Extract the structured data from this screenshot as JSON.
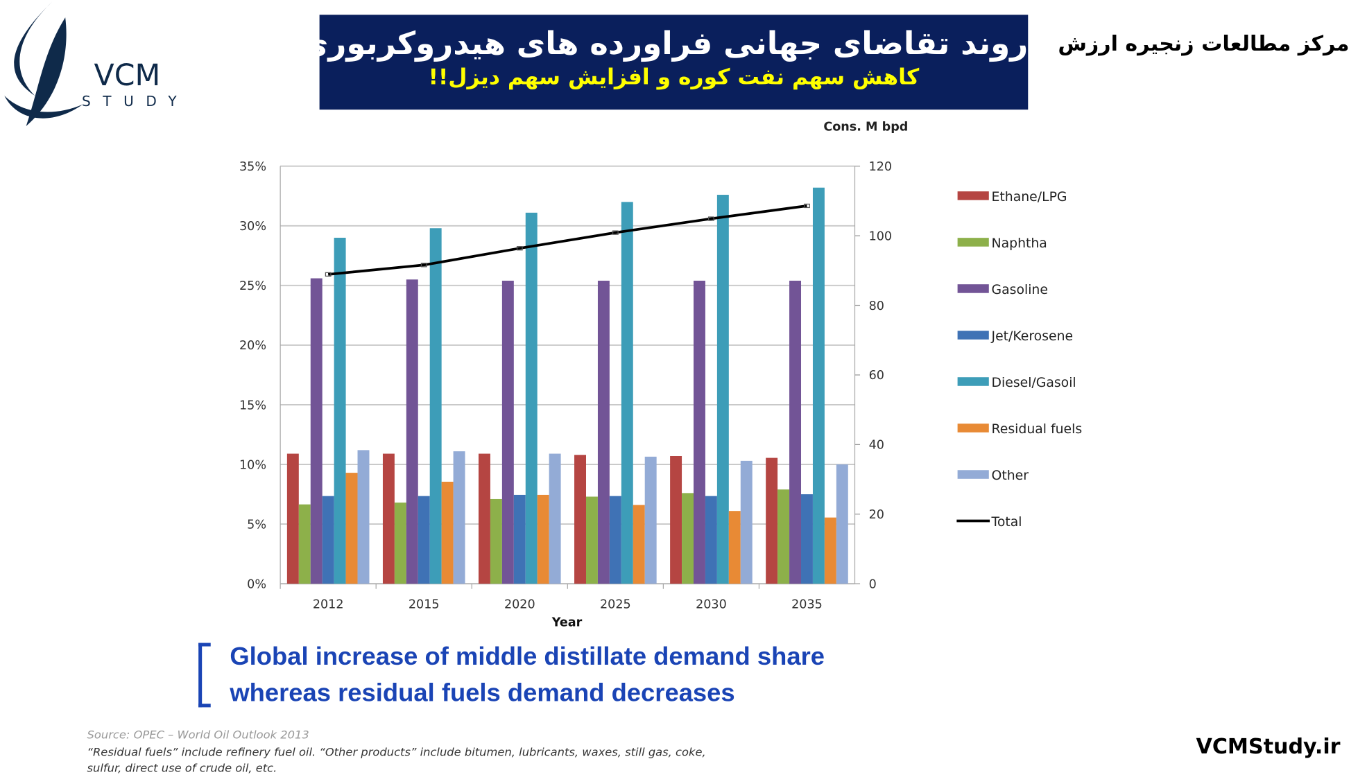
{
  "header": {
    "title": "روند تقاضای جهانی فراورده های هیدروکربوری",
    "subtitle": "کاهش سهم نفت کوره  و افزایش سهم دیزل!!",
    "org": "مرکز مطالعات زنجیره ارزش",
    "logo_text": "VCM STUDY"
  },
  "chart_data": {
    "type": "bar",
    "categories": [
      "2012",
      "2015",
      "2020",
      "2025",
      "2030",
      "2035"
    ],
    "xlabel": "Year",
    "ylabel_right": "Cons. M bpd",
    "ylim": [
      0,
      35
    ],
    "y_ticks": [
      "0%",
      "5%",
      "10%",
      "15%",
      "20%",
      "25%",
      "30%",
      "35%"
    ],
    "y2lim": [
      0,
      120
    ],
    "y2_ticks": [
      "0",
      "20",
      "40",
      "60",
      "80",
      "100",
      "120"
    ],
    "grid": true,
    "legend_position": "right",
    "series": [
      {
        "name": "Ethane/LPG",
        "color": "#b54542",
        "values": [
          10.9,
          10.9,
          10.9,
          10.8,
          10.7,
          10.55
        ]
      },
      {
        "name": "Naphtha",
        "color": "#8db04a",
        "values": [
          6.65,
          6.8,
          7.1,
          7.3,
          7.6,
          7.9
        ]
      },
      {
        "name": "Gasoline",
        "color": "#725496",
        "values": [
          25.6,
          25.5,
          25.4,
          25.4,
          25.4,
          25.4
        ]
      },
      {
        "name": "Jet/Kerosene",
        "color": "#3f72b5",
        "values": [
          7.35,
          7.35,
          7.45,
          7.35,
          7.35,
          7.5
        ]
      },
      {
        "name": "Diesel/Gasoil",
        "color": "#3d9db8",
        "values": [
          29.0,
          29.8,
          31.1,
          32.0,
          32.6,
          33.2
        ]
      },
      {
        "name": "Residual fuels",
        "color": "#e88a35",
        "values": [
          9.3,
          8.55,
          7.45,
          6.6,
          6.1,
          5.55
        ]
      },
      {
        "name": "Other",
        "color": "#93abd6",
        "values": [
          11.2,
          11.1,
          10.9,
          10.65,
          10.3,
          10.0
        ]
      }
    ],
    "line_series": {
      "name": "Total",
      "color": "#000000",
      "axis": "right",
      "values": [
        88.9,
        91.6,
        96.4,
        100.9,
        104.9,
        108.6
      ]
    }
  },
  "message": {
    "line1": "Global increase of middle distillate demand share",
    "line2": "whereas residual fuels demand decreases"
  },
  "notes": {
    "source": "Source: OPEC – World Oil Outlook 2013",
    "line1": "“Residual fuels” include refinery fuel oil. “Other products” include bitumen, lubricants, waxes, still gas, coke,",
    "line2": "sulfur, direct use of crude oil, etc."
  },
  "footer": {
    "site": "VCMStudy.ir"
  }
}
